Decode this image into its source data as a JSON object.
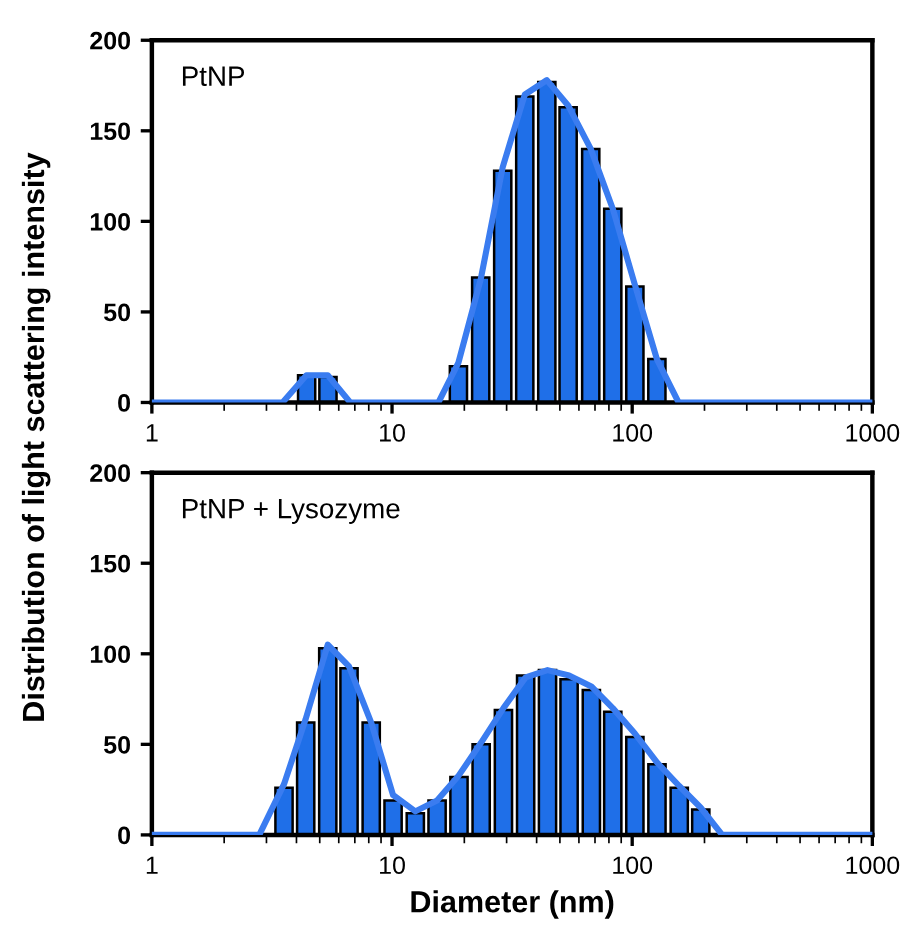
{
  "chart_data": [
    {
      "type": "bar",
      "title": "PtNP",
      "ylabel": "Distribution of light scattering intensity",
      "log": "x",
      "xlim": [
        1,
        1000
      ],
      "xticks": [
        1,
        10,
        100,
        1000
      ],
      "ylim": [
        0,
        200
      ],
      "yticks": [
        0,
        50,
        100,
        150,
        200
      ],
      "grid": false,
      "legend": false,
      "series": [
        {
          "color": "#1f6fe8",
          "x": [
            4.41,
            5.41,
            18.9,
            23.4,
            28.9,
            35.7,
            44.1,
            54.1,
            67.2,
            83.0,
            102.6,
            126.7
          ],
          "values": [
            15,
            14,
            20,
            69,
            128,
            169,
            177,
            163,
            140,
            107,
            64,
            24
          ]
        },
        {
          "type": "line",
          "color": "#3a7cf0",
          "x": [
            1,
            3.5,
            4.4,
            5.4,
            6.7,
            15.6,
            18.9,
            23.4,
            28.9,
            35.7,
            44.1,
            54.1,
            67.2,
            83.0,
            102.6,
            126.7,
            156,
            1000
          ],
          "values": [
            0,
            0,
            15,
            15,
            0,
            0,
            22,
            68,
            130,
            170,
            178,
            164,
            140,
            107,
            65,
            24,
            0,
            0
          ]
        }
      ]
    },
    {
      "type": "bar",
      "title": "PtNP + Lysozyme",
      "xlabel": "Diameter (nm)",
      "log": "x",
      "xlim": [
        1,
        1000
      ],
      "xticks": [
        1,
        10,
        100,
        1000
      ],
      "ylim": [
        0,
        200
      ],
      "yticks": [
        0,
        50,
        100,
        150,
        200
      ],
      "grid": false,
      "legend": false,
      "series": [
        {
          "color": "#1f6fe8",
          "x": [
            3.55,
            4.37,
            5.4,
            6.62,
            8.19,
            10.1,
            12.5,
            15.4,
            19.0,
            23.5,
            29.1,
            36.0,
            44.4,
            54.6,
            67.6,
            83.0,
            102.6,
            126.8,
            157,
            193
          ],
          "values": [
            26,
            62,
            103,
            92,
            62,
            19,
            12,
            19,
            32,
            50,
            69,
            88,
            91,
            86,
            80,
            68,
            54,
            39,
            26,
            14
          ]
        },
        {
          "type": "line",
          "color": "#3a7cf0",
          "x": [
            1,
            2.8,
            3.55,
            4.37,
            5.4,
            6.62,
            8.19,
            10.1,
            12.5,
            15.4,
            19.0,
            23.5,
            29.1,
            36.0,
            44.4,
            54.6,
            67.6,
            83.0,
            102.6,
            126.8,
            157,
            193,
            237,
            1000
          ],
          "values": [
            0,
            0,
            28,
            64,
            105,
            93,
            62,
            22,
            13,
            19,
            33,
            51,
            70,
            87,
            91,
            88,
            82,
            70,
            56,
            40,
            27,
            15,
            0,
            0
          ]
        }
      ]
    }
  ]
}
